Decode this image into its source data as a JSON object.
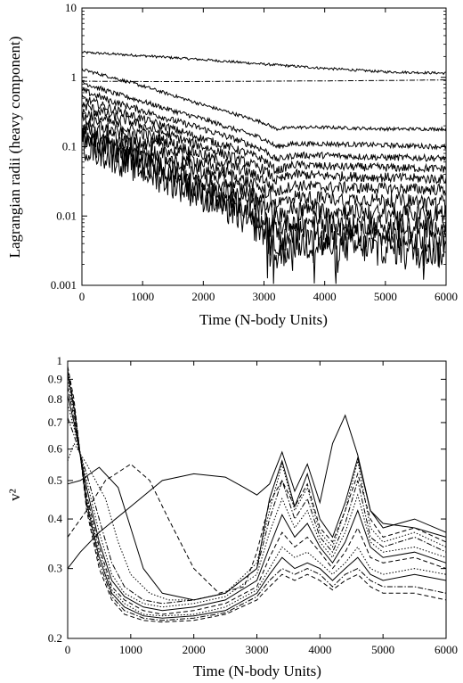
{
  "chart_data": [
    {
      "type": "line",
      "xlabel": "Time (N-body Units)",
      "ylabel": "Lagrangian radii (heavy component)",
      "xlim": [
        0,
        6000
      ],
      "ylim": [
        0.001,
        10
      ],
      "yscale": "log",
      "xticks": [
        0,
        1000,
        2000,
        3000,
        4000,
        5000,
        6000
      ],
      "yticks": [
        0.001,
        0.01,
        0.1,
        1,
        10
      ],
      "ytick_labels": [
        "0.001",
        "0.01",
        "0.1",
        "1",
        "10"
      ],
      "grid": false,
      "series": [
        {
          "style": "solid",
          "noise": 0.03,
          "x": [
            0,
            1000,
            2000,
            3000,
            4000,
            5000,
            6000
          ],
          "values": [
            2.3,
            2.05,
            1.8,
            1.55,
            1.35,
            1.2,
            1.15
          ]
        },
        {
          "style": "dashdot",
          "noise": 0.0,
          "x": [
            0,
            1000,
            2000,
            3000,
            4000,
            5000,
            6000
          ],
          "values": [
            0.88,
            0.87,
            0.87,
            0.88,
            0.89,
            0.9,
            0.92
          ]
        },
        {
          "style": "solid",
          "noise": 0.04,
          "x": [
            0,
            500,
            1000,
            1500,
            2000,
            2500,
            3000,
            3100,
            3200,
            3500,
            4000,
            5000,
            6000
          ],
          "values": [
            1.3,
            1.0,
            0.75,
            0.55,
            0.4,
            0.3,
            0.22,
            0.2,
            0.18,
            0.19,
            0.19,
            0.18,
            0.18
          ]
        },
        {
          "style": "solid",
          "noise": 0.06,
          "x": [
            0,
            500,
            1000,
            1500,
            2000,
            2500,
            3000,
            3200,
            3500,
            4000,
            5000,
            6000
          ],
          "values": [
            0.85,
            0.6,
            0.45,
            0.33,
            0.25,
            0.18,
            0.13,
            0.1,
            0.11,
            0.11,
            0.105,
            0.1
          ]
        },
        {
          "style": "solid",
          "noise": 0.08,
          "x": [
            0,
            500,
            1000,
            1500,
            2000,
            2500,
            3000,
            3200,
            3500,
            4000,
            5000,
            6000
          ],
          "values": [
            0.65,
            0.45,
            0.33,
            0.24,
            0.18,
            0.13,
            0.09,
            0.065,
            0.075,
            0.075,
            0.07,
            0.068
          ]
        },
        {
          "style": "solid",
          "noise": 0.1,
          "x": [
            0,
            500,
            1000,
            1500,
            2000,
            2500,
            3000,
            3200,
            3500,
            4000,
            5000,
            6000
          ],
          "values": [
            0.5,
            0.35,
            0.25,
            0.18,
            0.13,
            0.095,
            0.065,
            0.045,
            0.055,
            0.052,
            0.05,
            0.048
          ]
        },
        {
          "style": "solid",
          "noise": 0.12,
          "x": [
            0,
            500,
            1000,
            1500,
            2000,
            2500,
            3000,
            3200,
            3500,
            4000,
            5000,
            6000
          ],
          "values": [
            0.4,
            0.28,
            0.2,
            0.14,
            0.1,
            0.07,
            0.047,
            0.032,
            0.04,
            0.038,
            0.036,
            0.034
          ]
        },
        {
          "style": "solid",
          "noise": 0.14,
          "x": [
            0,
            500,
            1000,
            1500,
            2000,
            2500,
            3000,
            3200,
            3500,
            4000,
            5000,
            6000
          ],
          "values": [
            0.32,
            0.22,
            0.155,
            0.11,
            0.075,
            0.052,
            0.034,
            0.022,
            0.028,
            0.026,
            0.025,
            0.024
          ]
        },
        {
          "style": "solid",
          "noise": 0.17,
          "x": [
            0,
            500,
            1000,
            1500,
            2000,
            2500,
            3000,
            3200,
            3500,
            4000,
            5000,
            6000
          ],
          "values": [
            0.25,
            0.17,
            0.12,
            0.085,
            0.058,
            0.038,
            0.024,
            0.015,
            0.019,
            0.018,
            0.017,
            0.016
          ]
        },
        {
          "style": "solid",
          "noise": 0.2,
          "x": [
            0,
            500,
            1000,
            1500,
            2000,
            2500,
            3000,
            3200,
            3500,
            4000,
            5000,
            6000
          ],
          "values": [
            0.2,
            0.135,
            0.095,
            0.065,
            0.044,
            0.028,
            0.017,
            0.01,
            0.013,
            0.012,
            0.011,
            0.011
          ]
        },
        {
          "style": "solid",
          "noise": 0.24,
          "x": [
            0,
            500,
            1000,
            1500,
            2000,
            2500,
            3000,
            3200,
            3500,
            4000,
            5000,
            6000
          ],
          "values": [
            0.16,
            0.105,
            0.072,
            0.048,
            0.032,
            0.02,
            0.012,
            0.0065,
            0.0085,
            0.008,
            0.0075,
            0.007
          ]
        },
        {
          "style": "solid",
          "noise": 0.3,
          "x": [
            0,
            500,
            1000,
            1500,
            2000,
            2500,
            3000,
            3200,
            3500,
            4000,
            5000,
            6000
          ],
          "values": [
            0.13,
            0.085,
            0.058,
            0.038,
            0.024,
            0.015,
            0.0085,
            0.004,
            0.006,
            0.0055,
            0.005,
            0.0045
          ]
        },
        {
          "style": "solid",
          "noise": 0.38,
          "x": [
            0,
            500,
            1000,
            1500,
            2000,
            2500,
            3000,
            3200,
            3500,
            4000,
            5000,
            6000
          ],
          "values": [
            0.11,
            0.07,
            0.046,
            0.03,
            0.019,
            0.011,
            0.006,
            0.0025,
            0.004,
            0.0037,
            0.0034,
            0.003
          ]
        }
      ]
    },
    {
      "type": "line",
      "xlabel": "Time (N-body Units)",
      "ylabel": "v²",
      "xlim": [
        0,
        6000
      ],
      "ylim": [
        0.2,
        1
      ],
      "yscale": "log",
      "xticks": [
        0,
        1000,
        2000,
        3000,
        4000,
        5000,
        6000
      ],
      "yticks": [
        0.2,
        0.3,
        0.4,
        0.5,
        0.6,
        0.7,
        0.8,
        0.9,
        1
      ],
      "ytick_labels": [
        "0.2",
        "0.3",
        "0.4",
        "0.5",
        "0.6",
        "0.7",
        "0.8",
        "0.9",
        "1"
      ],
      "grid": false,
      "series": [
        {
          "style": "solid",
          "x": [
            0,
            200,
            500,
            1000,
            1500,
            2000,
            2500,
            2800,
            3000,
            3200,
            3400,
            3600,
            3800,
            4000,
            4200,
            4400,
            4600,
            4800,
            5000,
            5500,
            6000
          ],
          "values": [
            0.3,
            0.33,
            0.37,
            0.43,
            0.5,
            0.52,
            0.51,
            0.48,
            0.46,
            0.49,
            0.59,
            0.47,
            0.55,
            0.44,
            0.62,
            0.73,
            0.58,
            0.42,
            0.39,
            0.38,
            0.36
          ]
        },
        {
          "style": "solid",
          "x": [
            0,
            200,
            500,
            800,
            1000,
            1200,
            1500,
            2000,
            2500,
            3000,
            3200,
            3400,
            3600,
            3800,
            4000,
            4200,
            4400,
            4600,
            4800,
            5000,
            5500,
            6000
          ],
          "values": [
            0.49,
            0.5,
            0.54,
            0.48,
            0.38,
            0.3,
            0.26,
            0.25,
            0.26,
            0.3,
            0.45,
            0.56,
            0.43,
            0.52,
            0.4,
            0.36,
            0.44,
            0.57,
            0.42,
            0.38,
            0.4,
            0.37
          ]
        },
        {
          "style": "dashed",
          "x": [
            0,
            300,
            600,
            1000,
            1300,
            1600,
            2000,
            2400,
            2800,
            3000,
            3200,
            3400,
            3600,
            3800,
            4000,
            4200,
            4400,
            4600,
            4800,
            5000,
            5500,
            6000
          ],
          "values": [
            0.36,
            0.42,
            0.5,
            0.55,
            0.5,
            0.4,
            0.3,
            0.26,
            0.27,
            0.33,
            0.44,
            0.5,
            0.43,
            0.49,
            0.38,
            0.35,
            0.42,
            0.52,
            0.4,
            0.36,
            0.38,
            0.35
          ]
        },
        {
          "style": "dotted",
          "x": [
            0,
            100,
            300,
            600,
            800,
            1000,
            1300,
            1600,
            2000,
            2500,
            3000,
            3200,
            3400,
            3600,
            3800,
            4000,
            4200,
            4400,
            4600,
            4800,
            5000,
            5500,
            6000
          ],
          "values": [
            0.56,
            0.62,
            0.55,
            0.45,
            0.35,
            0.29,
            0.26,
            0.25,
            0.25,
            0.26,
            0.31,
            0.42,
            0.55,
            0.42,
            0.48,
            0.37,
            0.34,
            0.42,
            0.56,
            0.38,
            0.35,
            0.37,
            0.34
          ]
        },
        {
          "style": "dashdot",
          "x": [
            0,
            100,
            300,
            500,
            700,
            900,
            1200,
            1500,
            2000,
            2500,
            3000,
            3200,
            3400,
            3600,
            3800,
            4000,
            4200,
            4400,
            4600,
            4800,
            5000,
            5500,
            6000
          ],
          "values": [
            0.72,
            0.65,
            0.52,
            0.4,
            0.31,
            0.27,
            0.25,
            0.245,
            0.25,
            0.26,
            0.3,
            0.4,
            0.5,
            0.4,
            0.45,
            0.36,
            0.33,
            0.39,
            0.5,
            0.36,
            0.34,
            0.36,
            0.33
          ]
        },
        {
          "style": "dotted",
          "x": [
            0,
            100,
            300,
            500,
            700,
            900,
            1200,
            1500,
            2000,
            2500,
            3000,
            3200,
            3400,
            3600,
            3800,
            4000,
            4200,
            4400,
            4600,
            4800,
            5000,
            5500,
            6000
          ],
          "values": [
            0.78,
            0.68,
            0.5,
            0.37,
            0.29,
            0.26,
            0.245,
            0.24,
            0.245,
            0.255,
            0.29,
            0.37,
            0.45,
            0.38,
            0.42,
            0.35,
            0.32,
            0.37,
            0.46,
            0.35,
            0.33,
            0.34,
            0.32
          ]
        },
        {
          "style": "solid",
          "x": [
            0,
            100,
            300,
            500,
            700,
            900,
            1200,
            1500,
            2000,
            2500,
            3000,
            3200,
            3400,
            3600,
            3800,
            4000,
            4200,
            4400,
            4600,
            4800,
            5000,
            5500,
            6000
          ],
          "values": [
            0.82,
            0.7,
            0.48,
            0.35,
            0.28,
            0.255,
            0.24,
            0.235,
            0.24,
            0.25,
            0.28,
            0.34,
            0.41,
            0.36,
            0.39,
            0.34,
            0.31,
            0.35,
            0.42,
            0.34,
            0.32,
            0.33,
            0.31
          ]
        },
        {
          "style": "dashed",
          "x": [
            0,
            100,
            300,
            500,
            700,
            900,
            1200,
            1500,
            2000,
            2500,
            3000,
            3200,
            3400,
            3600,
            3800,
            4000,
            4200,
            4400,
            4600,
            4800,
            5000,
            5500,
            6000
          ],
          "values": [
            0.86,
            0.72,
            0.46,
            0.34,
            0.27,
            0.25,
            0.235,
            0.23,
            0.235,
            0.245,
            0.27,
            0.32,
            0.37,
            0.34,
            0.36,
            0.33,
            0.3,
            0.33,
            0.38,
            0.32,
            0.31,
            0.32,
            0.3
          ]
        },
        {
          "style": "dotted",
          "x": [
            0,
            100,
            300,
            500,
            700,
            900,
            1200,
            1500,
            2000,
            2500,
            3000,
            3200,
            3400,
            3600,
            3800,
            4000,
            4200,
            4400,
            4600,
            4800,
            5000,
            5500,
            6000
          ],
          "values": [
            0.9,
            0.74,
            0.45,
            0.33,
            0.265,
            0.245,
            0.23,
            0.228,
            0.23,
            0.24,
            0.265,
            0.3,
            0.34,
            0.32,
            0.33,
            0.31,
            0.29,
            0.31,
            0.34,
            0.3,
            0.29,
            0.3,
            0.29
          ]
        },
        {
          "style": "solid",
          "x": [
            0,
            100,
            300,
            500,
            700,
            900,
            1200,
            1500,
            2000,
            2500,
            3000,
            3200,
            3400,
            3600,
            3800,
            4000,
            4200,
            4400,
            4600,
            4800,
            5000,
            5500,
            6000
          ],
          "values": [
            0.93,
            0.76,
            0.44,
            0.32,
            0.26,
            0.24,
            0.228,
            0.225,
            0.228,
            0.235,
            0.26,
            0.29,
            0.32,
            0.3,
            0.31,
            0.3,
            0.28,
            0.3,
            0.32,
            0.29,
            0.28,
            0.29,
            0.28
          ]
        },
        {
          "style": "dashdot",
          "x": [
            0,
            100,
            300,
            500,
            700,
            900,
            1200,
            1500,
            2000,
            2500,
            3000,
            3200,
            3400,
            3600,
            3800,
            4000,
            4200,
            4400,
            4600,
            4800,
            5000,
            5500,
            6000
          ],
          "values": [
            0.95,
            0.78,
            0.43,
            0.31,
            0.255,
            0.235,
            0.225,
            0.222,
            0.225,
            0.232,
            0.255,
            0.28,
            0.3,
            0.29,
            0.3,
            0.29,
            0.27,
            0.29,
            0.3,
            0.28,
            0.27,
            0.27,
            0.26
          ]
        },
        {
          "style": "dashed",
          "x": [
            0,
            100,
            300,
            500,
            700,
            900,
            1200,
            1500,
            2000,
            2500,
            3000,
            3200,
            3400,
            3600,
            3800,
            4000,
            4200,
            4400,
            4600,
            4800,
            5000,
            5500,
            6000
          ],
          "values": [
            0.97,
            0.8,
            0.42,
            0.3,
            0.25,
            0.23,
            0.222,
            0.22,
            0.222,
            0.23,
            0.25,
            0.27,
            0.29,
            0.28,
            0.29,
            0.28,
            0.265,
            0.28,
            0.29,
            0.27,
            0.26,
            0.26,
            0.25
          ]
        }
      ]
    }
  ]
}
